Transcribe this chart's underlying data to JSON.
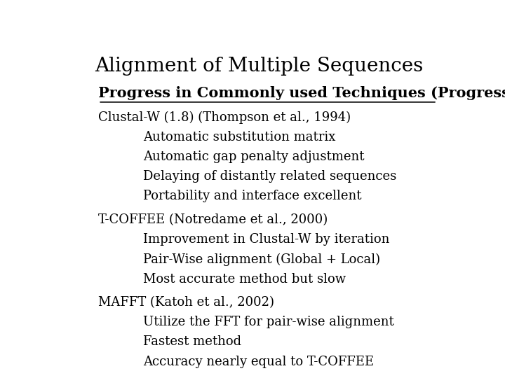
{
  "title": "Alignment of Multiple Sequences",
  "subtitle": "Progress in Commonly used Techniques (Progressive)",
  "background_color": "#ffffff",
  "title_fontsize": 20,
  "subtitle_fontsize": 15,
  "body_fontsize": 13,
  "sections": [
    {
      "header": "Clustal-W (1.8) (Thompson et al., 1994)",
      "items": [
        "Automatic substitution matrix",
        "Automatic gap penalty adjustment",
        "Delaying of distantly related sequences",
        "Portability and interface excellent"
      ]
    },
    {
      "header": "T-COFFEE (Notredame et al., 2000)",
      "items": [
        "Improvement in Clustal-W by iteration",
        "Pair-Wise alignment (Global + Local)",
        "Most accurate method but slow"
      ]
    },
    {
      "header": "MAFFT (Katoh et al., 2002)",
      "items": [
        "Utilize the FFT for pair-wise alignment",
        "Fastest method",
        "Accuracy nearly equal to T-COFFEE"
      ]
    }
  ]
}
